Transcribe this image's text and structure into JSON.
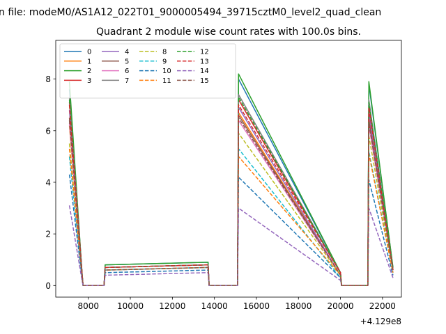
{
  "figure": {
    "suptitle": "n file: modeM0/AS1A12_022T01_9000005494_39715cztM0_level2_quad_clean",
    "title": "Quadrant 2 module wise count rates with 100.0s bins."
  },
  "chart_data": {
    "type": "line",
    "title": "Quadrant 2 module wise count rates with 100.0s bins.",
    "xlabel": "",
    "ylabel": "",
    "x_offset_label": "+4.129e8",
    "xlim": [
      6450,
      22900
    ],
    "ylim": [
      -0.45,
      9.5
    ],
    "xticks": [
      8000,
      10000,
      12000,
      14000,
      16000,
      18000,
      20000,
      22000
    ],
    "xtick_labels": [
      "8000",
      "10000",
      "12000",
      "14000",
      "16000",
      "18000",
      "20000",
      "22000"
    ],
    "yticks": [
      0,
      2,
      4,
      6,
      8
    ],
    "ytick_labels": [
      "0",
      "2",
      "4",
      "6",
      "8"
    ],
    "legend": {
      "position": "top-left",
      "ncol": 4
    },
    "x": [
      7100,
      7700,
      7750,
      8750,
      8800,
      13700,
      13750,
      15100,
      15150,
      20000,
      20050,
      21300,
      21350,
      22500
    ],
    "series": [
      {
        "name": "0",
        "color": "#1f77b4",
        "dash": "solid",
        "values": [
          7.6,
          0.5,
          0,
          0,
          0.8,
          0.9,
          0,
          0,
          8.0,
          0.5,
          0,
          0,
          7.8,
          0.7
        ]
      },
      {
        "name": "1",
        "color": "#ff7f0e",
        "dash": "solid",
        "values": [
          6.2,
          0.4,
          0,
          0,
          0.7,
          0.8,
          0,
          0,
          6.7,
          0.4,
          0,
          0,
          6.5,
          0.6
        ]
      },
      {
        "name": "2",
        "color": "#2ca02c",
        "dash": "solid",
        "values": [
          7.9,
          0.5,
          0,
          0,
          0.8,
          0.9,
          0,
          0,
          8.2,
          0.5,
          0,
          0,
          7.9,
          0.7
        ]
      },
      {
        "name": "3",
        "color": "#d62728",
        "dash": "solid",
        "values": [
          7.1,
          0.5,
          0,
          0,
          0.7,
          0.8,
          0,
          0,
          7.2,
          0.5,
          0,
          0,
          7.0,
          0.6
        ]
      },
      {
        "name": "4",
        "color": "#9467bd",
        "dash": "solid",
        "values": [
          6.8,
          0.4,
          0,
          0,
          0.7,
          0.8,
          0,
          0,
          6.9,
          0.4,
          0,
          0,
          6.7,
          0.6
        ]
      },
      {
        "name": "5",
        "color": "#8c564b",
        "dash": "solid",
        "values": [
          6.5,
          0.4,
          0,
          0,
          0.7,
          0.8,
          0,
          0,
          6.6,
          0.4,
          0,
          0,
          6.4,
          0.6
        ]
      },
      {
        "name": "6",
        "color": "#e377c2",
        "dash": "solid",
        "values": [
          6.3,
          0.4,
          0,
          0,
          0.6,
          0.7,
          0,
          0,
          6.4,
          0.4,
          0,
          0,
          6.2,
          0.6
        ]
      },
      {
        "name": "7",
        "color": "#7f7f7f",
        "dash": "solid",
        "values": [
          7.3,
          0.5,
          0,
          0,
          0.7,
          0.8,
          0,
          0,
          7.4,
          0.5,
          0,
          0,
          7.2,
          0.6
        ]
      },
      {
        "name": "8",
        "color": "#bcbd22",
        "dash": "dashed",
        "values": [
          5.5,
          0.4,
          0,
          0,
          0.6,
          0.7,
          0,
          0,
          5.9,
          0.4,
          0,
          0,
          5.8,
          0.5
        ]
      },
      {
        "name": "9",
        "color": "#17becf",
        "dash": "dashed",
        "values": [
          5.0,
          0.3,
          0,
          0,
          0.6,
          0.7,
          0,
          0,
          5.3,
          0.3,
          0,
          0,
          5.2,
          0.5
        ]
      },
      {
        "name": "10",
        "color": "#1f77b4",
        "dash": "dashed",
        "values": [
          4.3,
          0.3,
          0,
          0,
          0.5,
          0.6,
          0,
          0,
          4.2,
          0.3,
          0,
          0,
          4.1,
          0.4
        ]
      },
      {
        "name": "11",
        "color": "#ff7f0e",
        "dash": "dashed",
        "values": [
          5.3,
          0.4,
          0,
          0,
          0.6,
          0.7,
          0,
          0,
          5.0,
          0.4,
          0,
          0,
          5.1,
          0.5
        ]
      },
      {
        "name": "12",
        "color": "#2ca02c",
        "dash": "dashed",
        "values": [
          7.2,
          0.5,
          0,
          0,
          0.7,
          0.8,
          0,
          0,
          7.3,
          0.5,
          0,
          0,
          7.1,
          0.6
        ]
      },
      {
        "name": "13",
        "color": "#d62728",
        "dash": "dashed",
        "values": [
          7.0,
          0.5,
          0,
          0,
          0.7,
          0.8,
          0,
          0,
          7.0,
          0.5,
          0,
          0,
          6.9,
          0.6
        ]
      },
      {
        "name": "14",
        "color": "#9467bd",
        "dash": "dashed",
        "values": [
          3.1,
          0.2,
          0,
          0,
          0.4,
          0.5,
          0,
          0,
          3.0,
          0.2,
          0,
          0,
          3.0,
          0.3
        ]
      },
      {
        "name": "15",
        "color": "#8c564b",
        "dash": "dashed",
        "values": [
          6.4,
          0.4,
          0,
          0,
          0.6,
          0.7,
          0,
          0,
          6.5,
          0.4,
          0,
          0,
          6.3,
          0.6
        ]
      }
    ]
  }
}
